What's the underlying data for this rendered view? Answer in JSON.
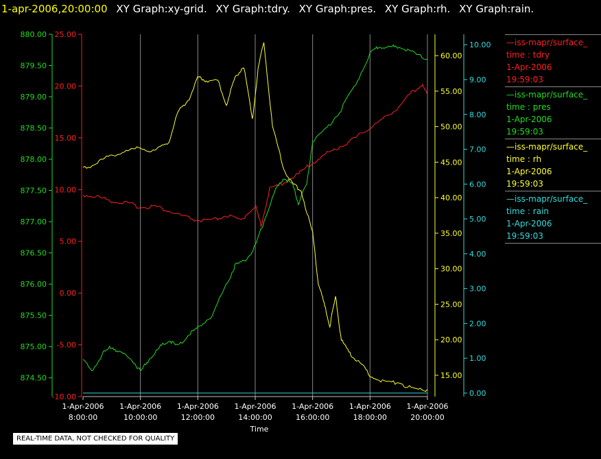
{
  "header": {
    "datetime": "1-apr-2006,20:00:00",
    "graph_titles": [
      "XY Graph:xy-grid.",
      "XY Graph:tdry.",
      "XY Graph:pres.",
      "XY Graph:rh.",
      "XY Graph:rain."
    ]
  },
  "legend": [
    {
      "name": "iss-mapr/surface_",
      "field": "time : tdry",
      "date": "1-Apr-2006",
      "time": "19:59:03",
      "color": "#ff2020"
    },
    {
      "name": "iss-mapr/surface_",
      "field": "time : pres",
      "date": "1-Apr-2006",
      "time": "19:59:03",
      "color": "#22dd22"
    },
    {
      "name": "iss-mapr/surface_",
      "field": "time : rh",
      "date": "1-Apr-2006",
      "time": "19:59:03",
      "color": "#ffff33"
    },
    {
      "name": "iss-mapr/surface_",
      "field": "time : rain",
      "date": "1-Apr-2006",
      "time": "19:59:03",
      "color": "#33dddd"
    }
  ],
  "disclaimer": "REAL-TIME DATA, NOT CHECKED FOR QUALITY",
  "chart_data": {
    "type": "line",
    "xlabel": "Time",
    "xlim": [
      8,
      20
    ],
    "grid": "vertical lines at x ticks",
    "x_ticks": [
      {
        "x": 8,
        "date": "1-Apr-2006",
        "time": "8:00:00"
      },
      {
        "x": 10,
        "date": "1-Apr-2006",
        "time": "10:00:00"
      },
      {
        "x": 12,
        "date": "1-Apr-2006",
        "time": "12:00:00"
      },
      {
        "x": 14,
        "date": "1-Apr-2006",
        "time": "14:00:00"
      },
      {
        "x": 16,
        "date": "1-Apr-2006",
        "time": "16:00:00"
      },
      {
        "x": 18,
        "date": "1-Apr-2006",
        "time": "18:00:00"
      },
      {
        "x": 20,
        "date": "1-Apr-2006",
        "time": "20:00:00"
      }
    ],
    "axes": {
      "pres": {
        "side": "left-outer",
        "color": "#22dd22",
        "range": [
          874.2,
          880.0
        ],
        "ticks": [
          "874.50",
          "875.00",
          "875.50",
          "876.00",
          "876.50",
          "877.00",
          "877.50",
          "878.00",
          "878.50",
          "879.00",
          "879.50",
          "880.00"
        ]
      },
      "tdry": {
        "side": "left-inner",
        "color": "#ff2020",
        "range": [
          -10,
          25
        ],
        "ticks": [
          "-10.00",
          "-5.00",
          "0.00",
          "5.00",
          "10.00",
          "15.00",
          "20.00",
          "25.00"
        ]
      },
      "rh": {
        "side": "right-inner",
        "color": "#ffff33",
        "range": [
          12,
          63
        ],
        "ticks": [
          "15.00",
          "20.00",
          "25.00",
          "30.00",
          "35.00",
          "40.00",
          "45.00",
          "50.00",
          "55.00",
          "60.00"
        ]
      },
      "rain": {
        "side": "right-outer",
        "color": "#33dddd",
        "range": [
          -0.1,
          10.3
        ],
        "ticks": [
          "0.00",
          "1.00",
          "2.00",
          "3.00",
          "4.00",
          "5.00",
          "6.00",
          "7.00",
          "8.00",
          "9.00",
          "10.00"
        ]
      }
    },
    "series": [
      {
        "key": "tdry",
        "axis": "tdry",
        "color": "#ff2020",
        "x": [
          8,
          8.5,
          9,
          9.5,
          10,
          10.5,
          11,
          11.5,
          12,
          12.5,
          13,
          13.5,
          14,
          14.2,
          14.5,
          15,
          15.5,
          16,
          16.5,
          17,
          17.5,
          18,
          18.5,
          19,
          19.5,
          19.8,
          20
        ],
        "y": [
          9.5,
          9.3,
          8.9,
          8.7,
          8.3,
          8.4,
          7.9,
          7.4,
          7.0,
          7.0,
          7.5,
          7.0,
          8.5,
          6.5,
          10.0,
          10.7,
          11.5,
          12.6,
          13.5,
          14.2,
          15.0,
          16.0,
          16.9,
          18.0,
          19.5,
          20.1,
          19.2
        ]
      },
      {
        "key": "pres",
        "axis": "pres",
        "color": "#22dd22",
        "x": [
          8,
          8.3,
          8.7,
          9,
          9.3,
          9.7,
          10,
          10.3,
          10.7,
          11,
          11.3,
          11.7,
          12,
          12.5,
          13,
          13.3,
          13.7,
          14,
          14.3,
          14.7,
          15,
          15.3,
          15.5,
          15.8,
          16,
          16.5,
          17,
          17.5,
          18,
          18.3,
          18.7,
          19,
          19.5,
          20
        ],
        "y": [
          874.8,
          874.6,
          874.9,
          875.0,
          874.9,
          874.8,
          874.6,
          874.8,
          875.0,
          875.1,
          875.0,
          875.2,
          875.3,
          875.5,
          876.0,
          876.3,
          876.4,
          876.6,
          877.0,
          877.5,
          877.7,
          877.6,
          877.3,
          877.6,
          878.3,
          878.5,
          878.8,
          879.2,
          879.7,
          879.8,
          879.8,
          879.8,
          879.7,
          879.6
        ]
      },
      {
        "key": "rh",
        "axis": "rh",
        "color": "#ffff33",
        "x": [
          8,
          8.5,
          9,
          9.5,
          10,
          10.5,
          11,
          11.3,
          11.7,
          12,
          12.3,
          12.7,
          13,
          13.3,
          13.6,
          13.9,
          14.1,
          14.3,
          14.6,
          15,
          15.3,
          15.6,
          16,
          16.2,
          16.4,
          16.6,
          16.8,
          17,
          17.3,
          17.6,
          18,
          18.5,
          19,
          19.5,
          20
        ],
        "y": [
          44,
          45,
          46,
          46.5,
          47,
          46.5,
          48,
          52,
          54,
          57,
          56.5,
          56.5,
          53,
          57,
          58.5,
          51,
          58,
          62,
          50,
          44,
          42,
          41,
          35,
          28,
          25,
          22,
          26,
          20,
          18,
          17,
          15,
          14,
          14,
          13,
          13
        ]
      },
      {
        "key": "rain",
        "axis": "rain",
        "color": "#33dddd",
        "x": [
          8,
          20
        ],
        "y": [
          0,
          0
        ]
      }
    ]
  }
}
